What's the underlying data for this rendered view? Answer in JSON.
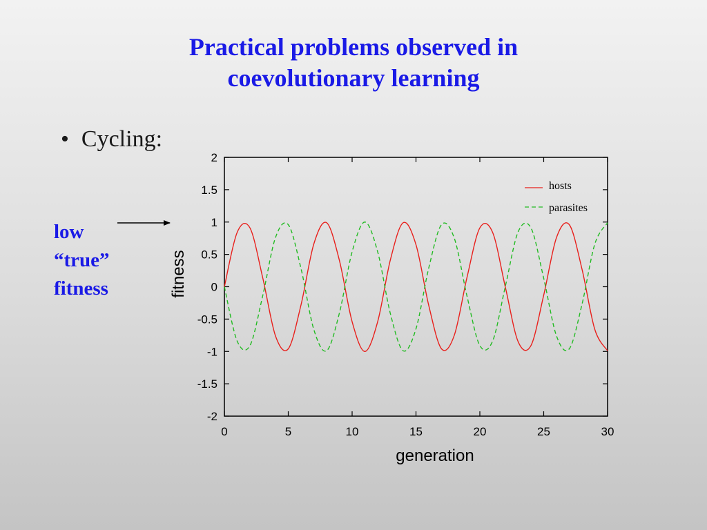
{
  "slide": {
    "title_line1": "Practical problems observed in",
    "title_line2": "coevolutionary learning",
    "bullet_text": "Cycling:",
    "annotation": [
      "low",
      "“true”",
      "fitness"
    ],
    "title_color": "#1a1ae6"
  },
  "chart_data": {
    "type": "line",
    "xlabel": "generation",
    "ylabel": "fitness",
    "xlim": [
      0,
      30
    ],
    "ylim": [
      -2,
      2
    ],
    "xticks": [
      0,
      5,
      10,
      15,
      20,
      25,
      30
    ],
    "yticks": [
      -2,
      -1.5,
      -1,
      -0.5,
      0,
      0.5,
      1,
      1.5,
      2
    ],
    "grid": false,
    "legend_position": "top-right",
    "x": [
      0,
      1,
      2,
      3,
      4,
      5,
      6,
      7,
      8,
      9,
      10,
      11,
      12,
      13,
      14,
      15,
      16,
      17,
      18,
      19,
      20,
      21,
      22,
      23,
      24,
      25,
      26,
      27,
      28,
      29,
      30
    ],
    "series": [
      {
        "name": "hosts",
        "color": "#e8201c",
        "dash": "solid",
        "values": [
          0,
          0.84,
          0.91,
          0.14,
          -0.76,
          -0.96,
          -0.28,
          0.66,
          0.99,
          0.41,
          -0.54,
          -1.0,
          -0.54,
          0.42,
          0.99,
          0.65,
          -0.29,
          -0.96,
          -0.75,
          0.15,
          0.91,
          0.84,
          -0.01,
          -0.85,
          -0.91,
          -0.13,
          0.76,
          0.96,
          0.27,
          -0.66,
          -0.99
        ]
      },
      {
        "name": "parasites",
        "color": "#22bb22",
        "dash": "dashed",
        "values": [
          0,
          -0.84,
          -0.91,
          -0.14,
          0.76,
          0.96,
          0.28,
          -0.66,
          -0.99,
          -0.41,
          0.54,
          1.0,
          0.54,
          -0.42,
          -0.99,
          -0.65,
          0.29,
          0.96,
          0.75,
          -0.15,
          -0.91,
          -0.84,
          0.01,
          0.85,
          0.91,
          0.13,
          -0.76,
          -0.96,
          -0.27,
          0.66,
          0.99
        ]
      }
    ]
  }
}
